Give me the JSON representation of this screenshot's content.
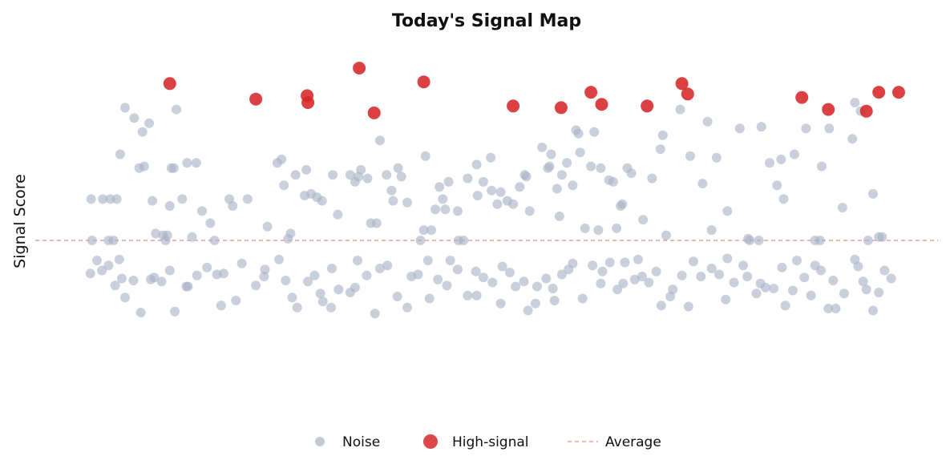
{
  "chart_data": {
    "type": "scatter",
    "title": "Today's Signal Map",
    "xlabel": "",
    "ylabel": "Signal Score",
    "xlim": [
      0,
      1
    ],
    "ylim": [
      -1,
      1
    ],
    "average": 0,
    "grid": false,
    "legend_position": "bottom",
    "series": [
      {
        "name": "Noise",
        "color": "#a9b2c6",
        "points": [
          [
            0.023,
            0.24
          ],
          [
            0.024,
            0.0
          ],
          [
            0.037,
            0.24
          ],
          [
            0.044,
            0.0
          ],
          [
            0.046,
            0.24
          ],
          [
            0.05,
            0.0
          ],
          [
            0.054,
            0.24
          ],
          [
            0.058,
            0.5
          ],
          [
            0.064,
            0.77
          ],
          [
            0.075,
            0.71
          ],
          [
            0.081,
            0.42
          ],
          [
            0.085,
            0.63
          ],
          [
            0.087,
            0.43
          ],
          [
            0.093,
            0.68
          ],
          [
            0.097,
            0.23
          ],
          [
            0.101,
            0.04
          ],
          [
            0.11,
            0.03
          ],
          [
            0.113,
            0.0
          ],
          [
            0.115,
            0.03
          ],
          [
            0.118,
            0.2
          ],
          [
            0.12,
            0.42
          ],
          [
            0.123,
            0.42
          ],
          [
            0.126,
            0.76
          ],
          [
            0.133,
            0.24
          ],
          [
            0.139,
            0.45
          ],
          [
            0.145,
            0.02
          ],
          [
            0.15,
            0.45
          ],
          [
            0.157,
            0.17
          ],
          [
            0.167,
            0.1
          ],
          [
            0.172,
            0.0
          ],
          [
            0.19,
            0.24
          ],
          [
            0.194,
            0.2
          ],
          [
            0.212,
            0.24
          ],
          [
            0.236,
            0.08
          ],
          [
            0.248,
            0.45
          ],
          [
            0.253,
            0.47
          ],
          [
            0.256,
            0.32
          ],
          [
            0.261,
            0.01
          ],
          [
            0.264,
            0.04
          ],
          [
            0.27,
            0.38
          ],
          [
            0.281,
            0.26
          ],
          [
            0.283,
            0.41
          ],
          [
            0.289,
            0.27
          ],
          [
            0.296,
            0.25
          ],
          [
            0.302,
            0.23
          ],
          [
            0.315,
            0.38
          ],
          [
            0.321,
            0.15
          ],
          [
            0.336,
            0.38
          ],
          [
            0.342,
            0.34
          ],
          [
            0.346,
            0.37
          ],
          [
            0.349,
            0.41
          ],
          [
            0.357,
            0.36
          ],
          [
            0.361,
            0.1
          ],
          [
            0.368,
            0.1
          ],
          [
            0.372,
            0.58
          ],
          [
            0.38,
            0.38
          ],
          [
            0.386,
            0.29
          ],
          [
            0.388,
            0.23
          ],
          [
            0.394,
            0.42
          ],
          [
            0.398,
            0.37
          ],
          [
            0.405,
            0.22
          ],
          [
            0.421,
            0.0
          ],
          [
            0.425,
            0.06
          ],
          [
            0.427,
            0.49
          ],
          [
            0.434,
            0.06
          ],
          [
            0.439,
            0.18
          ],
          [
            0.444,
            0.31
          ],
          [
            0.448,
            0.24
          ],
          [
            0.451,
            0.18
          ],
          [
            0.455,
            0.34
          ],
          [
            0.466,
            0.17
          ],
          [
            0.467,
            0.0
          ],
          [
            0.473,
            0.0
          ],
          [
            0.478,
            0.36
          ],
          [
            0.489,
            0.44
          ],
          [
            0.49,
            0.26
          ],
          [
            0.497,
            0.34
          ],
          [
            0.506,
            0.48
          ],
          [
            0.507,
            0.29
          ],
          [
            0.514,
            0.21
          ],
          [
            0.518,
            0.28
          ],
          [
            0.526,
            0.23
          ],
          [
            0.533,
            0.21
          ],
          [
            0.541,
            0.31
          ],
          [
            0.547,
            0.38
          ],
          [
            0.549,
            0.37
          ],
          [
            0.553,
            0.17
          ],
          [
            0.568,
            0.54
          ],
          [
            0.575,
            0.42
          ],
          [
            0.577,
            0.43
          ],
          [
            0.579,
            0.5
          ],
          [
            0.586,
            0.3
          ],
          [
            0.589,
            0.14
          ],
          [
            0.592,
            0.38
          ],
          [
            0.598,
            0.45
          ],
          [
            0.605,
            0.32
          ],
          [
            0.609,
            0.64
          ],
          [
            0.612,
            0.62
          ],
          [
            0.614,
            0.51
          ],
          [
            0.62,
            0.07
          ],
          [
            0.627,
            0.43
          ],
          [
            0.631,
            0.63
          ],
          [
            0.636,
            0.06
          ],
          [
            0.639,
            0.42
          ],
          [
            0.649,
            0.35
          ],
          [
            0.654,
            0.34
          ],
          [
            0.658,
            0.07
          ],
          [
            0.663,
            0.2
          ],
          [
            0.665,
            0.21
          ],
          [
            0.671,
            0.42
          ],
          [
            0.676,
            0.39
          ],
          [
            0.69,
            0.12
          ],
          [
            0.701,
            0.36
          ],
          [
            0.711,
            0.53
          ],
          [
            0.714,
            0.61
          ],
          [
            0.718,
            0.03
          ],
          [
            0.735,
            0.76
          ],
          [
            0.747,
            0.49
          ],
          [
            0.762,
            0.33
          ],
          [
            0.768,
            0.69
          ],
          [
            0.773,
            0.06
          ],
          [
            0.779,
            0.48
          ],
          [
            0.792,
            0.17
          ],
          [
            0.807,
            0.65
          ],
          [
            0.817,
            0.01
          ],
          [
            0.819,
            0.0
          ],
          [
            0.83,
            0.0
          ],
          [
            0.833,
            0.66
          ],
          [
            0.843,
            0.45
          ],
          [
            0.852,
            0.32
          ],
          [
            0.857,
            0.47
          ],
          [
            0.86,
            0.24
          ],
          [
            0.873,
            0.5
          ],
          [
            0.887,
            0.65
          ],
          [
            0.898,
            0.0
          ],
          [
            0.904,
            0.0
          ],
          [
            0.906,
            0.43
          ],
          [
            0.915,
            0.65
          ],
          [
            0.931,
            0.19
          ],
          [
            0.943,
            0.59
          ],
          [
            0.946,
            0.8
          ],
          [
            0.953,
            0.75
          ],
          [
            0.962,
            0.0
          ],
          [
            0.968,
            0.27
          ],
          [
            0.975,
            0.02
          ],
          [
            0.979,
            0.02
          ],
          [
            0.03,
            -0.2
          ],
          [
            0.036,
            -0.3
          ],
          [
            0.044,
            -0.25
          ],
          [
            0.052,
            -0.45
          ],
          [
            0.057,
            -0.19
          ],
          [
            0.064,
            -0.57
          ],
          [
            0.074,
            -0.4
          ],
          [
            0.083,
            -0.72
          ],
          [
            0.095,
            -0.39
          ],
          [
            0.099,
            -0.37
          ],
          [
            0.118,
            -0.3
          ],
          [
            0.124,
            -0.71
          ],
          [
            0.138,
            -0.46
          ],
          [
            0.151,
            -0.35
          ],
          [
            0.163,
            -0.27
          ],
          [
            0.175,
            -0.34
          ],
          [
            0.183,
            -0.33
          ],
          [
            0.198,
            -0.6
          ],
          [
            0.205,
            -0.23
          ],
          [
            0.222,
            -0.45
          ],
          [
            0.232,
            -0.36
          ],
          [
            0.25,
            -0.19
          ],
          [
            0.266,
            -0.57
          ],
          [
            0.272,
            -0.67
          ],
          [
            0.285,
            -0.41
          ],
          [
            0.293,
            -0.35
          ],
          [
            0.303,
            -0.61
          ],
          [
            0.313,
            -0.67
          ],
          [
            0.322,
            -0.49
          ],
          [
            0.336,
            -0.52
          ],
          [
            0.345,
            -0.2
          ],
          [
            0.356,
            -0.35
          ],
          [
            0.366,
            -0.73
          ],
          [
            0.381,
            -0.25
          ],
          [
            0.393,
            -0.56
          ],
          [
            0.405,
            -0.67
          ],
          [
            0.418,
            -0.34
          ],
          [
            0.43,
            -0.2
          ],
          [
            0.442,
            -0.39
          ],
          [
            0.453,
            -0.45
          ],
          [
            0.466,
            -0.29
          ],
          [
            0.478,
            -0.55
          ],
          [
            0.489,
            -0.55
          ],
          [
            0.497,
            -0.37
          ],
          [
            0.508,
            -0.42
          ],
          [
            0.518,
            -0.63
          ],
          [
            0.529,
            -0.32
          ],
          [
            0.536,
            -0.46
          ],
          [
            0.551,
            -0.7
          ],
          [
            0.562,
            -0.46
          ],
          [
            0.573,
            -0.38
          ],
          [
            0.581,
            -0.48
          ],
          [
            0.592,
            -0.34
          ],
          [
            0.6,
            -0.29
          ],
          [
            0.617,
            -0.58
          ],
          [
            0.629,
            -0.25
          ],
          [
            0.639,
            -0.43
          ],
          [
            0.65,
            -0.22
          ],
          [
            0.659,
            -0.49
          ],
          [
            0.668,
            -0.22
          ],
          [
            0.68,
            -0.39
          ],
          [
            0.689,
            -0.36
          ],
          [
            0.697,
            -0.42
          ],
          [
            0.712,
            -0.65
          ],
          [
            0.726,
            -0.49
          ],
          [
            0.737,
            -0.35
          ],
          [
            0.751,
            -0.21
          ],
          [
            0.76,
            -0.36
          ],
          [
            0.773,
            -0.28
          ],
          [
            0.782,
            -0.34
          ],
          [
            0.792,
            -0.18
          ],
          [
            0.8,
            -0.42
          ],
          [
            0.816,
            -0.36
          ],
          [
            0.827,
            -0.53
          ],
          [
            0.838,
            -0.47
          ],
          [
            0.848,
            -0.48
          ],
          [
            0.862,
            -0.65
          ],
          [
            0.871,
            -0.5
          ],
          [
            0.885,
            -0.37
          ],
          [
            0.893,
            -0.55
          ],
          [
            0.905,
            -0.3
          ],
          [
            0.914,
            -0.68
          ],
          [
            0.923,
            -0.68
          ],
          [
            0.933,
            -0.53
          ],
          [
            0.946,
            -0.19
          ],
          [
            0.956,
            -0.41
          ],
          [
            0.968,
            -0.7
          ],
          [
            0.982,
            -0.3
          ],
          [
            0.022,
            -0.33
          ],
          [
            0.108,
            -0.41
          ],
          [
            0.233,
            -0.29
          ],
          [
            0.314,
            -0.28
          ],
          [
            0.372,
            -0.28
          ],
          [
            0.457,
            -0.2
          ],
          [
            0.546,
            -0.41
          ],
          [
            0.605,
            -0.23
          ],
          [
            0.666,
            -0.43
          ],
          [
            0.723,
            -0.56
          ],
          [
            0.811,
            -0.25
          ],
          [
            0.876,
            -0.2
          ],
          [
            0.95,
            -0.26
          ],
          [
            0.99,
            -0.38
          ],
          [
            0.06,
            -0.38
          ],
          [
            0.18,
            -0.65
          ],
          [
            0.258,
            -0.4
          ],
          [
            0.342,
            -0.47
          ],
          [
            0.432,
            -0.58
          ],
          [
            0.52,
            -0.26
          ],
          [
            0.583,
            -0.6
          ],
          [
            0.641,
            -0.31
          ],
          [
            0.706,
            -0.31
          ],
          [
            0.79,
            -0.59
          ],
          [
            0.858,
            -0.27
          ],
          [
            0.92,
            -0.4
          ],
          [
            0.975,
            -0.52
          ],
          [
            0.14,
            -0.46
          ],
          [
            0.3,
            -0.53
          ],
          [
            0.41,
            -0.36
          ],
          [
            0.488,
            -0.31
          ],
          [
            0.56,
            -0.63
          ],
          [
            0.684,
            -0.19
          ],
          [
            0.745,
            -0.66
          ],
          [
            0.832,
            -0.43
          ],
          [
            0.898,
            -0.25
          ],
          [
            0.96,
            -0.49
          ]
        ]
      },
      {
        "name": "High-signal",
        "color": "#d62728",
        "points": [
          [
            0.118,
            0.91
          ],
          [
            0.222,
            0.82
          ],
          [
            0.284,
            0.84
          ],
          [
            0.285,
            0.8
          ],
          [
            0.347,
            1.0
          ],
          [
            0.365,
            0.74
          ],
          [
            0.425,
            0.92
          ],
          [
            0.533,
            0.78
          ],
          [
            0.591,
            0.77
          ],
          [
            0.627,
            0.86
          ],
          [
            0.64,
            0.79
          ],
          [
            0.695,
            0.78
          ],
          [
            0.737,
            0.91
          ],
          [
            0.744,
            0.85
          ],
          [
            0.882,
            0.83
          ],
          [
            0.914,
            0.76
          ],
          [
            0.96,
            0.75
          ],
          [
            0.975,
            0.86
          ],
          [
            0.999,
            0.86
          ]
        ]
      }
    ],
    "legend": [
      "Noise",
      "High-signal",
      "Average"
    ]
  }
}
